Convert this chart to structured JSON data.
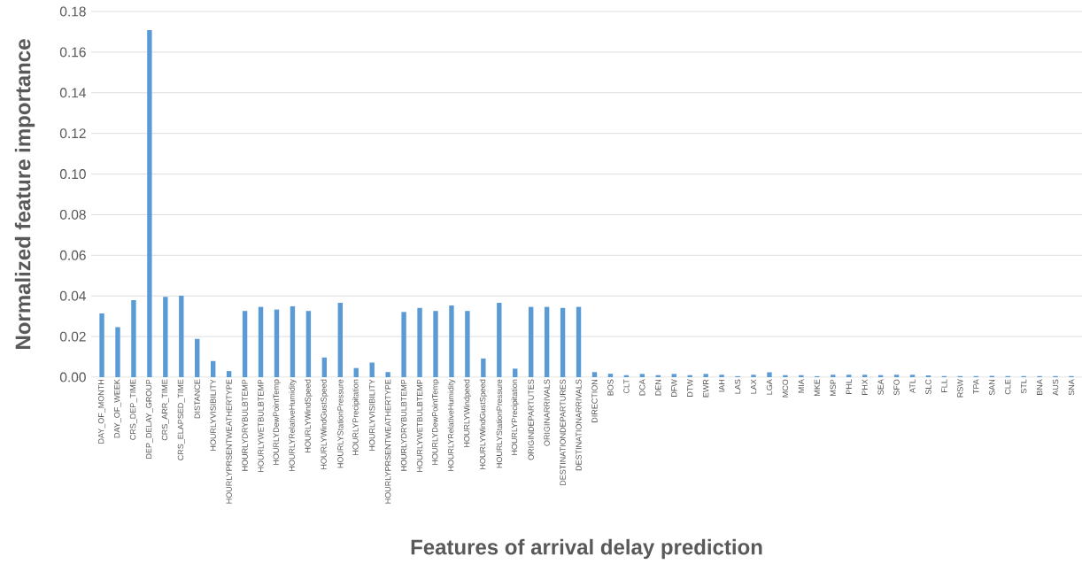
{
  "chart_data": {
    "type": "bar",
    "xlabel": "Features of arrival delay prediction",
    "ylabel": "Normalized feature importance",
    "categories": [
      "DAY_OF_MONTH",
      "DAY_OF_WEEK",
      "CRS_DEP_TIME",
      "DEP_DELAY_GROUP",
      "CRS_ARR_TIME",
      "CRS_ELAPSED_TIME",
      "DISTANCE",
      "HOURLYVISIBILITY",
      "HOURLYPRSENTWEATHERTYPE",
      "HOURLYDRYBULBTEMP",
      "HOURLYWETBULBTEMP",
      "HOURLYDewPointTemp",
      "HOURLYRelativeHumidity",
      "HOURLYWindSpeed",
      "HOURLYWindGustSpeed",
      "HOURLYStationPressure",
      "HOURLYPrecipitation",
      "HOURLYVISIBILITY",
      "HOURLYPRSENTWEATHERTYPE",
      "HOURLYDRYBULBTEMP",
      "HOURLYWETBULBTEMP",
      "HOURLYDewPointTemp",
      "HOURLYRelativeHumidity",
      "HOURLYWindpeed",
      "HOURLYWindGustSpeed",
      "HOURLYStationPressure",
      "HOURLYPrecipitation",
      "ORIGINDEPARTUTES",
      "ORIGINARRIVALS",
      "DESTINATIONDEPARTURES",
      "DESTINATIONARRIVALS",
      "DIRECTION",
      "BOS",
      "CLT",
      "DCA",
      "DEN",
      "DFW",
      "DTW",
      "EWR",
      "IAH",
      "LAS",
      "LAX",
      "LGA",
      "MCO",
      "MIA",
      "MKE",
      "MSP",
      "PHL",
      "PHX",
      "SEA",
      "SFO",
      "ATL",
      "SLC",
      "FLL",
      "RSW",
      "TPA",
      "SAN",
      "CLE",
      "STL",
      "BNA",
      "AUS",
      "SNA"
    ],
    "values": [
      0.0314,
      0.0246,
      0.0379,
      0.1708,
      0.0396,
      0.0401,
      0.0189,
      0.008,
      0.003,
      0.0326,
      0.0346,
      0.0333,
      0.0349,
      0.0326,
      0.0097,
      0.0366,
      0.0045,
      0.0072,
      0.0025,
      0.0321,
      0.0341,
      0.0326,
      0.0353,
      0.0326,
      0.0092,
      0.0366,
      0.0042,
      0.0346,
      0.0346,
      0.0341,
      0.0346,
      0.0025,
      0.0017,
      0.001,
      0.0016,
      0.001,
      0.0016,
      0.001,
      0.0016,
      0.0012,
      0.0005,
      0.0012,
      0.0024,
      0.001,
      0.001,
      0.0005,
      0.0012,
      0.0012,
      0.0012,
      0.001,
      0.0012,
      0.0012,
      0.0009,
      0.0005,
      0.0005,
      0.0005,
      0.0007,
      0.0005,
      0.0005,
      0.0005,
      0.0005,
      0.0005
    ],
    "color": "#5b9bd5",
    "ylim": [
      0,
      0.18
    ],
    "yticks": [
      {
        "value": 0,
        "label": "0.00"
      },
      {
        "value": 0.02,
        "label": "0.02"
      },
      {
        "value": 0.04,
        "label": "0.04"
      },
      {
        "value": 0.06,
        "label": "0.06"
      },
      {
        "value": 0.08,
        "label": "0.08"
      },
      {
        "value": 0.1,
        "label": "0.10"
      },
      {
        "value": 0.12,
        "label": "0.12"
      },
      {
        "value": 0.14,
        "label": "0.14"
      },
      {
        "value": 0.16,
        "label": "0.16"
      },
      {
        "value": 0.18,
        "label": "0.18"
      }
    ],
    "grid": "y"
  }
}
